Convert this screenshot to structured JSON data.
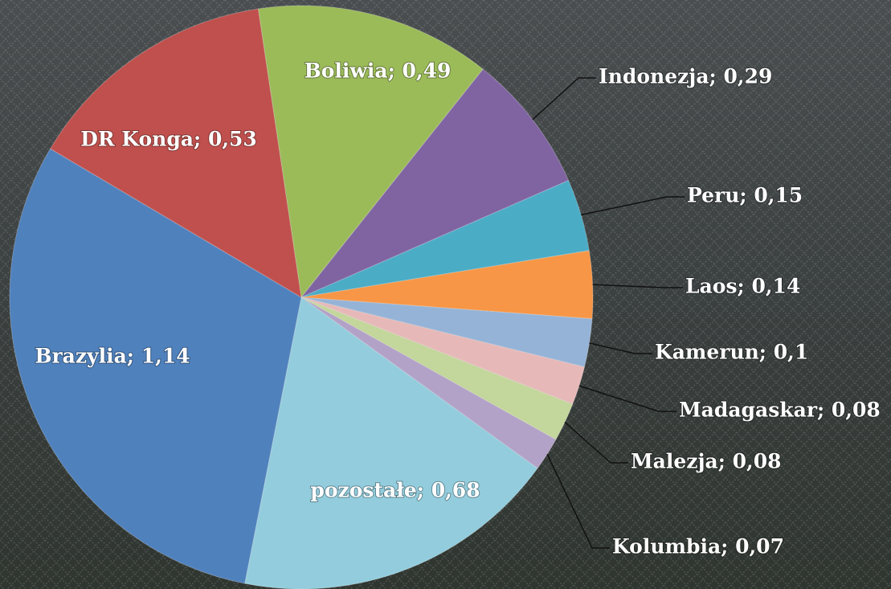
{
  "chart_data": {
    "type": "pie",
    "values": [
      0.49,
      0.29,
      0.15,
      0.14,
      0.1,
      0.08,
      0.08,
      0.07,
      0.68,
      1.14,
      0.53
    ],
    "value_labels": [
      "Boliwia; 0,49",
      "Indonezja; 0,29",
      "Peru; 0,15",
      "Laos; 0,14",
      "Kamerun; 0,1",
      "Madagaskar; 0,08",
      "Malezja; 0,08",
      "Kolumbia; 0,07",
      "pozostałe; 0,68",
      "Brazylia; 1,14",
      "DR Konga; 0,53"
    ],
    "colors": [
      "#9bbb59",
      "#8064a2",
      "#4bacc6",
      "#f79646",
      "#95b3d7",
      "#e6b9b8",
      "#c3d69b",
      "#b3a2c7",
      "#93cddd",
      "#4f81bd",
      "#c0504d"
    ]
  }
}
